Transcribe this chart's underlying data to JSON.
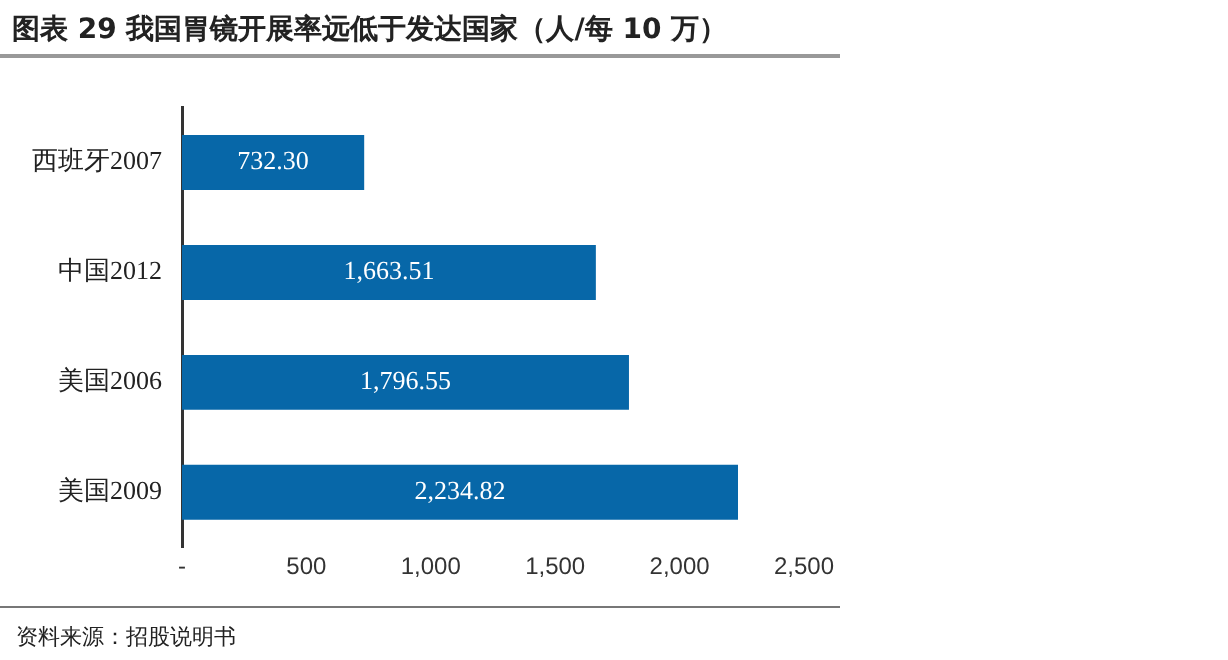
{
  "chart_data": {
    "type": "bar",
    "orientation": "horizontal",
    "title": "图表 29 我国胃镜开展率远低于发达国家（人/每 10 万）",
    "categories": [
      "西班牙2007",
      "中国2012",
      "美国2006",
      "美国2009"
    ],
    "values": [
      732.3,
      1663.51,
      1796.55,
      2234.82
    ],
    "value_labels": [
      "732.30",
      "1,663.51",
      "1,796.55",
      "2,234.82"
    ],
    "color": "#0767a8",
    "xlim": [
      0,
      2500
    ],
    "xticks": [
      {
        "value": 0,
        "label": "-"
      },
      500,
      {
        "value": 1000,
        "label": "1,000"
      },
      {
        "value": 1500,
        "label": "1,500"
      },
      {
        "value": 2000,
        "label": "2,000"
      },
      {
        "value": 2500,
        "label": "2,500"
      }
    ],
    "grid": false,
    "legend": false,
    "annotations": [
      "资料来源：招股说明书"
    ]
  }
}
